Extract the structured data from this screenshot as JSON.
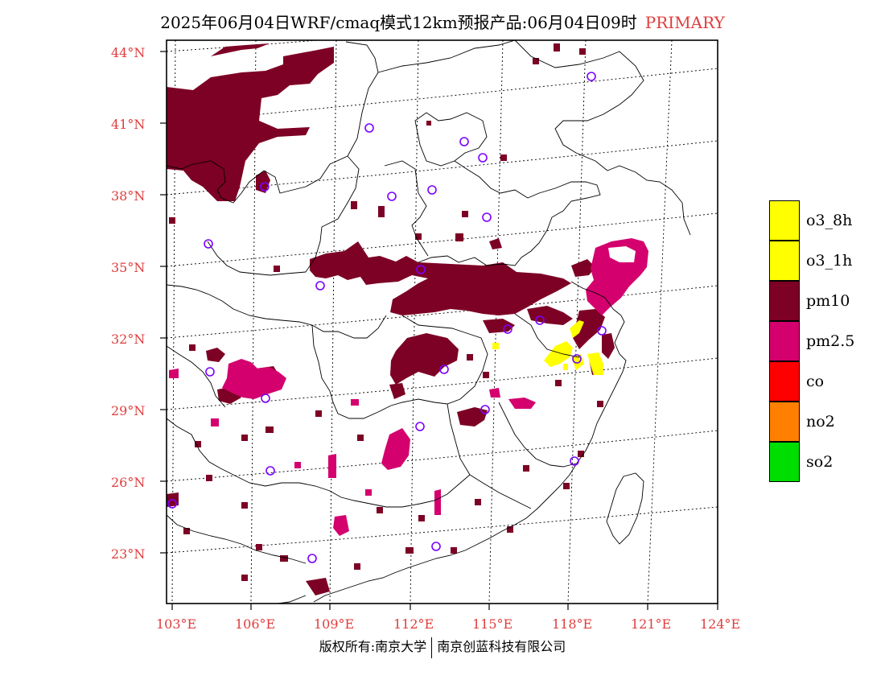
{
  "header": {
    "title": "2025年06月04日WRF/cmaq模式12km预报产品:06月04日09时",
    "variable": "PRIMARY"
  },
  "axes": {
    "lat_labels": [
      "44°N",
      "41°N",
      "38°N",
      "35°N",
      "32°N",
      "29°N",
      "26°N",
      "23°N"
    ],
    "lon_labels": [
      "103°E",
      "106°E",
      "109°E",
      "112°E",
      "115°E",
      "118°E",
      "121°E",
      "124°E"
    ]
  },
  "legend": {
    "items": [
      {
        "label": "o3_8h",
        "color": "#ffff00"
      },
      {
        "label": "o3_1h",
        "color": "#ffff00"
      },
      {
        "label": "pm10",
        "color": "#7d0025"
      },
      {
        "label": "pm2.5",
        "color": "#d4006e"
      },
      {
        "label": "co",
        "color": "#ff0000"
      },
      {
        "label": "no2",
        "color": "#ff7f00"
      },
      {
        "label": "so2",
        "color": "#00dd00"
      }
    ]
  },
  "footer": {
    "copyright_left": "版权所有:南京大学",
    "copyright_right": "南京创蓝科技有限公司"
  }
}
